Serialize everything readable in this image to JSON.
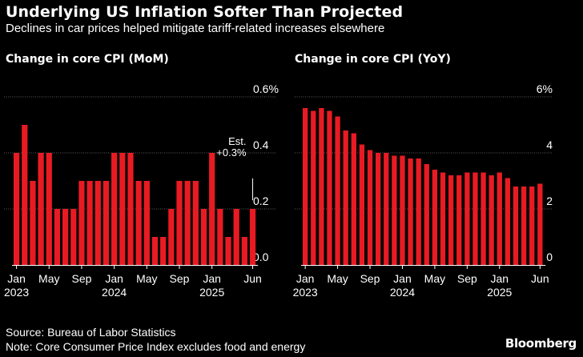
{
  "header": {
    "title": "Underlying US Inflation Softer Than Projected",
    "subtitle": "Declines in car prices helped mitigate tariff-related increases elsewhere"
  },
  "footer": {
    "source": "Source: Bureau of Labor Statistics",
    "note": "Note: Core Consumer Price Index excludes food and energy",
    "logo": "Bloomberg"
  },
  "colors": {
    "bar": "#e81b23",
    "axis": "#ffffff",
    "grid": "#ffffff",
    "background": "#000000"
  },
  "chart_data": [
    {
      "type": "bar",
      "title": "Change in core CPI (MoM)",
      "x": [
        "2023-01",
        "2023-02",
        "2023-03",
        "2023-04",
        "2023-05",
        "2023-06",
        "2023-07",
        "2023-08",
        "2023-09",
        "2023-10",
        "2023-11",
        "2023-12",
        "2024-01",
        "2024-02",
        "2024-03",
        "2024-04",
        "2024-05",
        "2024-06",
        "2024-07",
        "2024-08",
        "2024-09",
        "2024-10",
        "2024-11",
        "2024-12",
        "2025-01",
        "2025-02",
        "2025-03",
        "2025-04",
        "2025-05",
        "2025-06"
      ],
      "values": [
        0.4,
        0.5,
        0.3,
        0.4,
        0.4,
        0.2,
        0.2,
        0.2,
        0.3,
        0.3,
        0.3,
        0.3,
        0.4,
        0.4,
        0.4,
        0.3,
        0.3,
        0.1,
        0.1,
        0.2,
        0.3,
        0.3,
        0.3,
        0.2,
        0.4,
        0.2,
        0.1,
        0.2,
        0.1,
        0.2
      ],
      "ylim": [
        0,
        0.6
      ],
      "yticks": [
        "0.0",
        "0.2",
        "0.4",
        "0.6%"
      ],
      "ytick_values": [
        0,
        0.2,
        0.4,
        0.6
      ],
      "xtick_labels": [
        {
          "index": 0,
          "line1": "Jan",
          "line2": "2023"
        },
        {
          "index": 4,
          "line1": "May",
          "line2": ""
        },
        {
          "index": 8,
          "line1": "Sep",
          "line2": ""
        },
        {
          "index": 12,
          "line1": "Jan",
          "line2": "2024"
        },
        {
          "index": 16,
          "line1": "May",
          "line2": ""
        },
        {
          "index": 20,
          "line1": "Sep",
          "line2": ""
        },
        {
          "index": 24,
          "line1": "Jan",
          "line2": "2025"
        },
        {
          "index": 29,
          "line1": "Jun",
          "line2": ""
        }
      ],
      "annotation": {
        "line1": "Est.",
        "line2": "+0.3%",
        "value": 0.3,
        "index": 29
      },
      "grid": true,
      "axis_side": "right"
    },
    {
      "type": "bar",
      "title": "Change in core CPI (YoY)",
      "x": [
        "2023-01",
        "2023-02",
        "2023-03",
        "2023-04",
        "2023-05",
        "2023-06",
        "2023-07",
        "2023-08",
        "2023-09",
        "2023-10",
        "2023-11",
        "2023-12",
        "2024-01",
        "2024-02",
        "2024-03",
        "2024-04",
        "2024-05",
        "2024-06",
        "2024-07",
        "2024-08",
        "2024-09",
        "2024-10",
        "2024-11",
        "2024-12",
        "2025-01",
        "2025-02",
        "2025-03",
        "2025-04",
        "2025-05",
        "2025-06"
      ],
      "values": [
        5.6,
        5.5,
        5.6,
        5.5,
        5.3,
        4.8,
        4.7,
        4.3,
        4.1,
        4.0,
        4.0,
        3.9,
        3.9,
        3.8,
        3.8,
        3.6,
        3.4,
        3.3,
        3.2,
        3.2,
        3.3,
        3.3,
        3.3,
        3.2,
        3.3,
        3.1,
        2.8,
        2.8,
        2.8,
        2.9
      ],
      "ylim": [
        0,
        6
      ],
      "yticks": [
        "0",
        "2",
        "4",
        "6%"
      ],
      "ytick_values": [
        0,
        2,
        4,
        6
      ],
      "xtick_labels": [
        {
          "index": 0,
          "line1": "Jan",
          "line2": "2023"
        },
        {
          "index": 4,
          "line1": "May",
          "line2": ""
        },
        {
          "index": 8,
          "line1": "Sep",
          "line2": ""
        },
        {
          "index": 12,
          "line1": "Jan",
          "line2": "2024"
        },
        {
          "index": 16,
          "line1": "May",
          "line2": ""
        },
        {
          "index": 20,
          "line1": "Sep",
          "line2": ""
        },
        {
          "index": 24,
          "line1": "Jan",
          "line2": "2025"
        },
        {
          "index": 29,
          "line1": "Jun",
          "line2": ""
        }
      ],
      "grid": true,
      "axis_side": "right"
    }
  ]
}
